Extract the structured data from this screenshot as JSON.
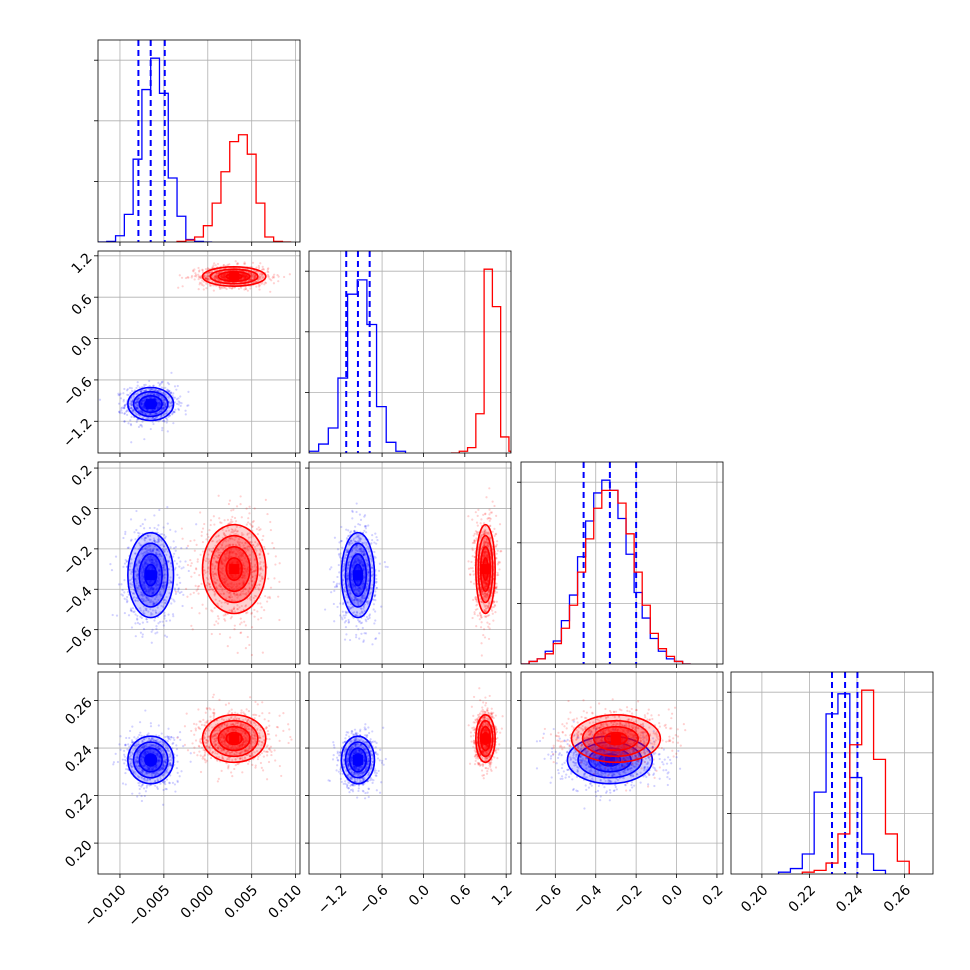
{
  "chart_data": {
    "type": "corner",
    "grid": true,
    "colors": {
      "blue": "#0000ff",
      "red": "#ff0000"
    },
    "parameters": [
      {
        "range": [
          -0.0125,
          0.0105
        ],
        "ticks": [
          -0.01,
          -0.005,
          0.0,
          0.005,
          0.01
        ],
        "tick_labels": [
          "−0.010",
          "−0.005",
          "0.000",
          "0.005",
          "0.010"
        ]
      },
      {
        "range": [
          -1.66,
          1.27
        ],
        "ticks": [
          -1.2,
          -0.6,
          0.0,
          0.6,
          1.2
        ],
        "tick_labels": [
          "−1.2",
          "−0.6",
          "0.0",
          "0.6",
          "1.2"
        ]
      },
      {
        "range": [
          -0.77,
          0.23
        ],
        "ticks": [
          -0.6,
          -0.4,
          -0.2,
          0.0,
          0.2
        ],
        "tick_labels": [
          "−0.6",
          "−0.4",
          "−0.2",
          "0.0",
          "0.2"
        ]
      },
      {
        "range": [
          0.187,
          0.272
        ],
        "ticks": [
          0.2,
          0.22,
          0.24,
          0.26
        ],
        "tick_labels": [
          "0.20",
          "0.22",
          "0.24",
          "0.26"
        ]
      }
    ],
    "series": [
      {
        "color": "#0000ff",
        "mean": [
          -0.0065,
          -0.95,
          -0.33,
          0.235
        ],
        "std": [
          0.0013,
          0.12,
          0.105,
          0.005
        ],
        "quantile_lines": [
          [
            -0.0079,
            -0.0065,
            -0.0049
          ],
          [
            -1.12,
            -0.95,
            -0.78
          ],
          [
            -0.46,
            -0.33,
            -0.2
          ],
          [
            0.2295,
            0.235,
            0.2402
          ]
        ],
        "hist": [
          {
            "edges": [
              -0.0125,
              -0.0115,
              -0.0105,
              -0.0095,
              -0.0085,
              -0.0075,
              -0.0065,
              -0.0055,
              -0.0045,
              -0.0035,
              -0.0025,
              -0.0015,
              -0.0005,
              0.0005
            ],
            "counts": [
              0,
              1,
              10,
              44,
              132,
              243,
              293,
              237,
              102,
              41,
              4,
              1,
              0
            ]
          },
          {
            "edges": [
              -1.66,
              -1.52,
              -1.38,
              -1.24,
              -1.1,
              -0.96,
              -0.82,
              -0.68,
              -0.54,
              -0.4,
              -0.26
            ],
            "counts": [
              1,
              5,
              14,
              42,
              89,
              97,
              72,
              26,
              6,
              1
            ]
          },
          {
            "edges": [
              -0.77,
              -0.73,
              -0.69,
              -0.65,
              -0.61,
              -0.57,
              -0.53,
              -0.49,
              -0.45,
              -0.41,
              -0.37,
              -0.33,
              -0.29,
              -0.25,
              -0.21,
              -0.17,
              -0.13,
              -0.09,
              -0.05,
              -0.01,
              0.03,
              0.07
            ],
            "counts": [
              0,
              1,
              2,
              5,
              9,
              17,
              27,
              42,
              56,
              67,
              72,
              68,
              57,
              43,
              28,
              18,
              10,
              5,
              2,
              1,
              0
            ]
          },
          {
            "edges": [
              0.207,
              0.212,
              0.217,
              0.222,
              0.227,
              0.232,
              0.237,
              0.242,
              0.247,
              0.252
            ],
            "counts": [
              1,
              3,
              11,
              45,
              88,
              99,
              53,
              11,
              2
            ]
          }
        ]
      },
      {
        "color": "#ff0000",
        "mean": [
          0.003,
          0.9,
          -0.3,
          0.244
        ],
        "std": [
          0.0018,
          0.07,
          0.11,
          0.005
        ],
        "hist": [
          {
            "edges": [
              -0.0035,
              -0.0025,
              -0.0015,
              -0.0005,
              0.0005,
              0.0015,
              0.0025,
              0.0035,
              0.0045,
              0.0055,
              0.0065,
              0.0075,
              0.0085,
              0.0095
            ],
            "counts": [
              1,
              3,
              8,
              26,
              62,
              112,
              160,
              171,
              140,
              62,
              8,
              1,
              0
            ]
          },
          {
            "edges": [
              0.4,
              0.52,
              0.64,
              0.76,
              0.88,
              1.0,
              1.12,
              1.24,
              1.27
            ],
            "counts": [
              0,
              1,
              3,
              22,
              103,
              82,
              9,
              1
            ]
          },
          {
            "edges": [
              -0.77,
              -0.73,
              -0.69,
              -0.65,
              -0.61,
              -0.57,
              -0.53,
              -0.49,
              -0.45,
              -0.41,
              -0.37,
              -0.33,
              -0.29,
              -0.25,
              -0.21,
              -0.17,
              -0.13,
              -0.09,
              -0.05,
              -0.01,
              0.03,
              0.07
            ],
            "counts": [
              0,
              1,
              2,
              4,
              8,
              14,
              23,
              36,
              49,
              61,
              68,
              68,
              63,
              51,
              36,
              23,
              12,
              6,
              3,
              1,
              0
            ]
          },
          {
            "edges": [
              0.217,
              0.222,
              0.227,
              0.232,
              0.237,
              0.242,
              0.247,
              0.252,
              0.257,
              0.262
            ],
            "counts": [
              1,
              2,
              6,
              22,
              71,
              101,
              63,
              22,
              7
            ]
          }
        ]
      }
    ]
  }
}
